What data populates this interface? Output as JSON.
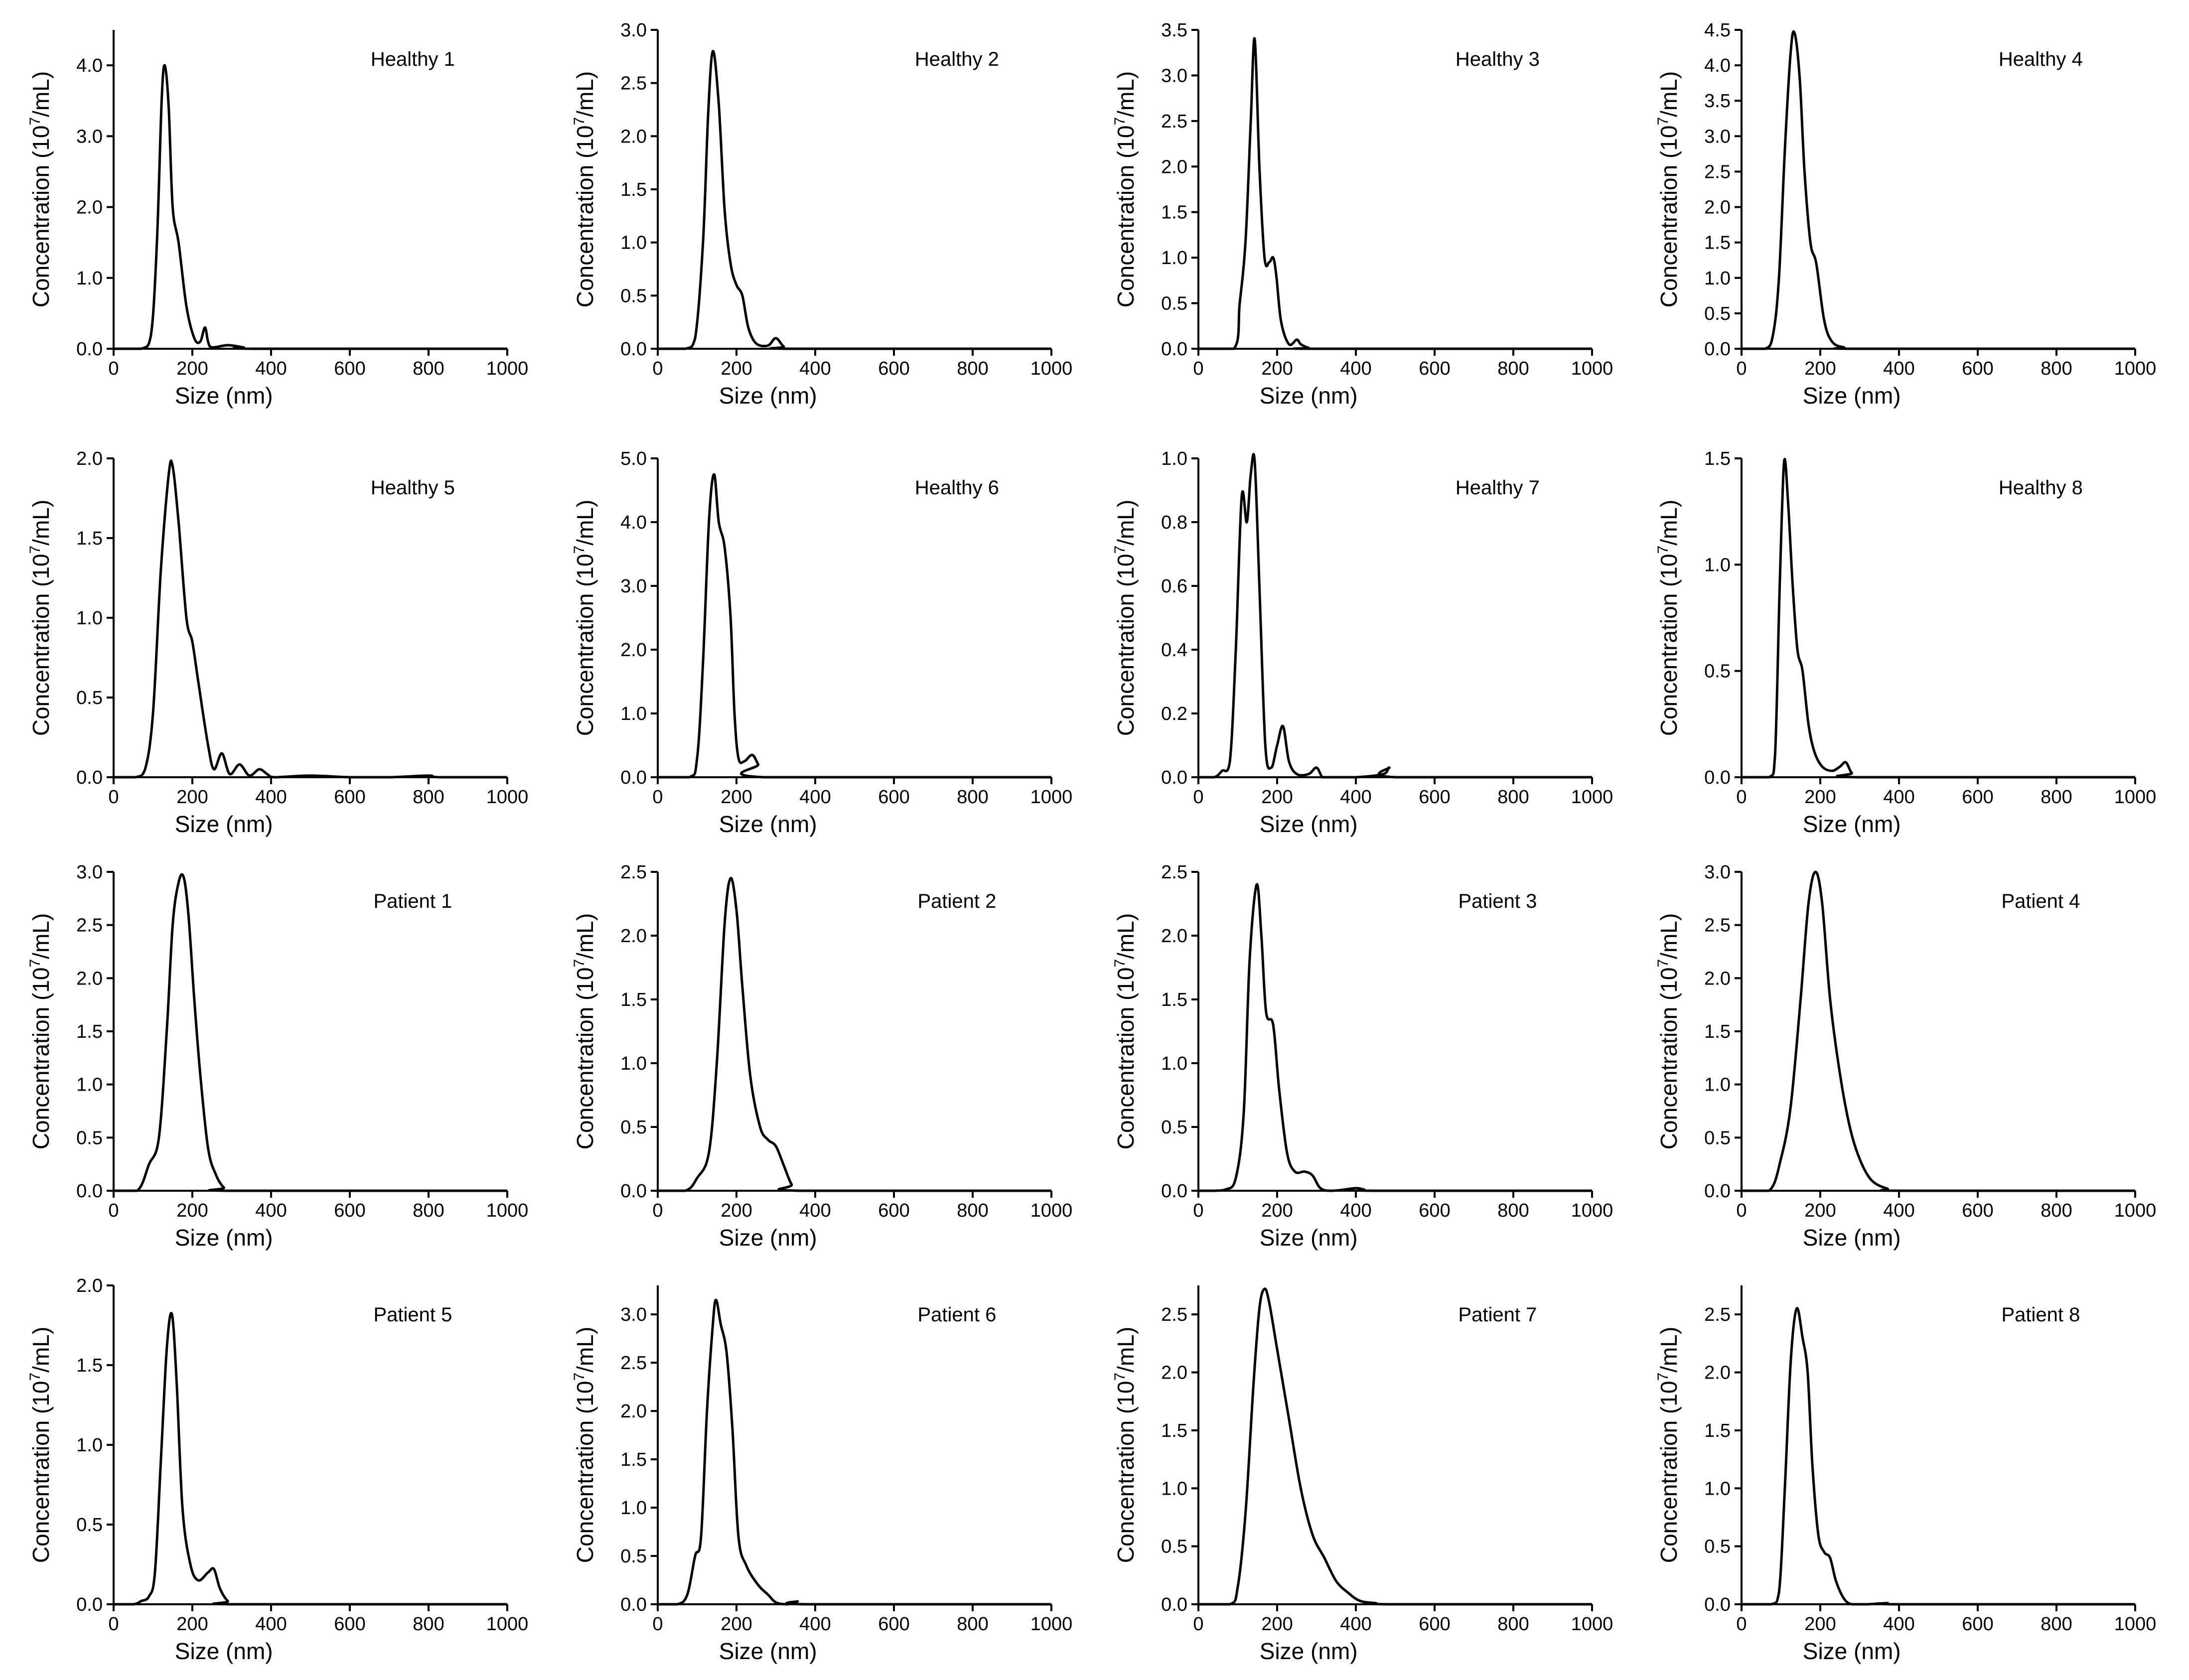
{
  "chart_data": [
    {
      "type": "line",
      "title": "Healthy 1",
      "xlabel": "Size (nm)",
      "ylabel": "Concentration (10^7/mL)",
      "xlim": [
        0,
        1000
      ],
      "ylim": [
        0,
        4.5
      ],
      "xticks": [
        0,
        200,
        400,
        600,
        800,
        1000
      ],
      "yticks": [
        "0.0",
        "1.0",
        "2.0",
        "3.0",
        "4.0"
      ],
      "series": [
        {
          "name": "Healthy 1",
          "x": [
            0,
            70,
            95,
            110,
            122,
            130,
            140,
            150,
            165,
            185,
            205,
            220,
            232,
            240,
            250,
            290,
            330,
            360,
            1000
          ],
          "y": [
            0,
            0,
            0.2,
            1.5,
            3.5,
            4.0,
            3.4,
            2.0,
            1.5,
            0.6,
            0.15,
            0.1,
            0.3,
            0.1,
            0.02,
            0.05,
            0.02,
            0,
            0
          ]
        }
      ]
    },
    {
      "type": "line",
      "title": "Healthy 2",
      "xlabel": "Size (nm)",
      "ylabel": "Concentration (10^7/mL)",
      "xlim": [
        0,
        1000
      ],
      "ylim": [
        0,
        3.0
      ],
      "xticks": [
        0,
        200,
        400,
        600,
        800,
        1000
      ],
      "yticks": [
        "0.0",
        "0.5",
        "1.0",
        "1.5",
        "2.0",
        "2.5",
        "3.0"
      ],
      "series": [
        {
          "name": "Healthy 2",
          "x": [
            0,
            70,
            95,
            115,
            128,
            140,
            155,
            170,
            185,
            200,
            215,
            230,
            250,
            280,
            300,
            320,
            340,
            1000
          ],
          "y": [
            0,
            0,
            0.1,
            1.0,
            2.2,
            2.8,
            2.3,
            1.3,
            0.8,
            0.6,
            0.5,
            0.2,
            0.05,
            0.03,
            0.1,
            0.02,
            0,
            0
          ]
        }
      ]
    },
    {
      "type": "line",
      "title": "Healthy 3",
      "xlabel": "Size (nm)",
      "ylabel": "Concentration (10^7/mL)",
      "xlim": [
        0,
        1000
      ],
      "ylim": [
        0,
        3.5
      ],
      "xticks": [
        0,
        200,
        400,
        600,
        800,
        1000
      ],
      "yticks": [
        "0.0",
        "0.5",
        "1.0",
        "1.5",
        "2.0",
        "2.5",
        "3.0",
        "3.5"
      ],
      "series": [
        {
          "name": "Healthy 3",
          "x": [
            0,
            90,
            105,
            120,
            133,
            143,
            155,
            168,
            180,
            190,
            198,
            210,
            230,
            250,
            260,
            280,
            300,
            1000
          ],
          "y": [
            0,
            0,
            0.5,
            1.2,
            2.5,
            3.4,
            2.0,
            1.0,
            0.95,
            1.0,
            0.8,
            0.3,
            0.05,
            0.1,
            0.05,
            0.01,
            0,
            0
          ]
        }
      ]
    },
    {
      "type": "line",
      "title": "Healthy 4",
      "xlabel": "Size (nm)",
      "ylabel": "Concentration (10^7/mL)",
      "xlim": [
        0,
        1000
      ],
      "ylim": [
        0,
        4.5
      ],
      "xticks": [
        0,
        200,
        400,
        600,
        800,
        1000
      ],
      "yticks": [
        "0.0",
        "0.5",
        "1.0",
        "1.5",
        "2.0",
        "2.5",
        "3.0",
        "3.5",
        "4.0",
        "4.5"
      ],
      "series": [
        {
          "name": "Healthy 4",
          "x": [
            0,
            60,
            80,
            95,
            110,
            125,
            135,
            148,
            160,
            175,
            190,
            210,
            230,
            260,
            300,
            1000
          ],
          "y": [
            0,
            0,
            0.2,
            1.0,
            2.8,
            4.2,
            4.45,
            3.8,
            2.5,
            1.5,
            1.2,
            0.4,
            0.1,
            0.02,
            0,
            0
          ]
        }
      ]
    },
    {
      "type": "line",
      "title": "Healthy 5",
      "xlabel": "Size (nm)",
      "ylabel": "Concentration (10^7/mL)",
      "xlim": [
        0,
        1000
      ],
      "ylim": [
        0,
        2.0
      ],
      "xticks": [
        0,
        200,
        400,
        600,
        800,
        1000
      ],
      "yticks": [
        "0.0",
        "0.5",
        "1.0",
        "1.5",
        "2.0"
      ],
      "series": [
        {
          "name": "Healthy 5",
          "x": [
            0,
            55,
            80,
            100,
            120,
            140,
            150,
            165,
            185,
            200,
            215,
            240,
            255,
            275,
            295,
            320,
            345,
            370,
            390,
            410,
            500,
            600,
            700,
            800,
            830,
            1000
          ],
          "y": [
            0,
            0,
            0.05,
            0.4,
            1.3,
            1.9,
            1.95,
            1.6,
            1.0,
            0.85,
            0.6,
            0.2,
            0.05,
            0.15,
            0.02,
            0.08,
            0.01,
            0.05,
            0.02,
            0,
            0.01,
            0,
            0,
            0.01,
            0,
            0
          ]
        }
      ]
    },
    {
      "type": "line",
      "title": "Healthy 6",
      "xlabel": "Size (nm)",
      "ylabel": "Concentration (10^7/mL)",
      "xlim": [
        0,
        1000
      ],
      "ylim": [
        0,
        5.0
      ],
      "xticks": [
        0,
        200,
        400,
        600,
        800,
        1000
      ],
      "yticks": [
        "0.0",
        "1.0",
        "2.0",
        "3.0",
        "4.0",
        "5.0"
      ],
      "series": [
        {
          "name": "Healthy 6",
          "x": [
            0,
            80,
            100,
            115,
            130,
            143,
            155,
            170,
            185,
            195,
            205,
            220,
            240,
            255,
            270,
            1000
          ],
          "y": [
            0,
            0,
            0.3,
            1.8,
            4.0,
            4.75,
            4.0,
            3.6,
            2.5,
            1.0,
            0.3,
            0.25,
            0.35,
            0.2,
            0,
            0
          ]
        }
      ]
    },
    {
      "type": "line",
      "title": "Healthy 7",
      "xlabel": "Size (nm)",
      "ylabel": "Concentration (10^7/mL)",
      "xlim": [
        0,
        1000
      ],
      "ylim": [
        0,
        1.0
      ],
      "xticks": [
        0,
        200,
        400,
        600,
        800,
        1000
      ],
      "yticks": [
        "0.0",
        "0.2",
        "0.4",
        "0.6",
        "0.8",
        "1.0"
      ],
      "series": [
        {
          "name": "Healthy 7",
          "x": [
            0,
            40,
            60,
            80,
            95,
            110,
            123,
            133,
            143,
            155,
            170,
            185,
            200,
            215,
            230,
            250,
            280,
            300,
            315,
            330,
            400,
            470,
            485,
            500,
            1000
          ],
          "y": [
            0,
            0,
            0.02,
            0.05,
            0.4,
            0.88,
            0.8,
            0.95,
            0.99,
            0.6,
            0.1,
            0.03,
            0.1,
            0.16,
            0.05,
            0.01,
            0.01,
            0.03,
            0,
            0,
            0,
            0.01,
            0.03,
            0,
            0
          ]
        }
      ]
    },
    {
      "type": "line",
      "title": "Healthy 8",
      "xlabel": "Size (nm)",
      "ylabel": "Concentration (10^7/mL)",
      "xlim": [
        0,
        1000
      ],
      "ylim": [
        0,
        1.5
      ],
      "xticks": [
        0,
        200,
        400,
        600,
        800,
        1000
      ],
      "yticks": [
        "0.0",
        "0.5",
        "1.0",
        "1.5"
      ],
      "series": [
        {
          "name": "Healthy 8",
          "x": [
            0,
            70,
            85,
            97,
            108,
            118,
            130,
            142,
            155,
            170,
            185,
            205,
            230,
            250,
            265,
            280,
            300,
            1000
          ],
          "y": [
            0,
            0,
            0.1,
            0.9,
            1.48,
            1.3,
            0.9,
            0.6,
            0.5,
            0.25,
            0.12,
            0.05,
            0.03,
            0.05,
            0.07,
            0.02,
            0,
            0
          ]
        }
      ]
    },
    {
      "type": "line",
      "title": "Patient 1",
      "xlabel": "Size (nm)",
      "ylabel": "Concentration (10^7/mL)",
      "xlim": [
        0,
        1000
      ],
      "ylim": [
        0,
        3.0
      ],
      "xticks": [
        0,
        200,
        400,
        600,
        800,
        1000
      ],
      "yticks": [
        "0.0",
        "0.5",
        "1.0",
        "1.5",
        "2.0",
        "2.5",
        "3.0"
      ],
      "series": [
        {
          "name": "Patient 1",
          "x": [
            0,
            60,
            90,
            115,
            135,
            150,
            165,
            178,
            190,
            205,
            220,
            240,
            260,
            280,
            300,
            1000
          ],
          "y": [
            0,
            0,
            0.25,
            0.5,
            1.5,
            2.5,
            2.9,
            2.95,
            2.6,
            1.8,
            1.1,
            0.4,
            0.15,
            0.03,
            0,
            0
          ]
        }
      ]
    },
    {
      "type": "line",
      "title": "Patient 2",
      "xlabel": "Size (nm)",
      "ylabel": "Concentration (10^7/mL)",
      "xlim": [
        0,
        1000
      ],
      "ylim": [
        0,
        2.5
      ],
      "xticks": [
        0,
        200,
        400,
        600,
        800,
        1000
      ],
      "yticks": [
        "0.0",
        "0.5",
        "1.0",
        "1.5",
        "2.0",
        "2.5"
      ],
      "series": [
        {
          "name": "Patient 2",
          "x": [
            0,
            70,
            100,
            130,
            150,
            170,
            185,
            200,
            215,
            235,
            260,
            280,
            300,
            320,
            340,
            360,
            1000
          ],
          "y": [
            0,
            0,
            0.1,
            0.3,
            1.0,
            2.1,
            2.45,
            2.2,
            1.6,
            0.9,
            0.5,
            0.4,
            0.35,
            0.2,
            0.05,
            0,
            0
          ]
        }
      ]
    },
    {
      "type": "line",
      "title": "Patient 3",
      "xlabel": "Size (nm)",
      "ylabel": "Concentration (10^7/mL)",
      "xlim": [
        0,
        1000
      ],
      "ylim": [
        0,
        2.5
      ],
      "xticks": [
        0,
        200,
        400,
        600,
        800,
        1000
      ],
      "yticks": [
        "0.0",
        "0.5",
        "1.0",
        "1.5",
        "2.0",
        "2.5"
      ],
      "series": [
        {
          "name": "Patient 3",
          "x": [
            0,
            40,
            70,
            95,
            115,
            130,
            148,
            160,
            172,
            190,
            205,
            225,
            245,
            270,
            290,
            310,
            340,
            400,
            420,
            460,
            1000
          ],
          "y": [
            0,
            0,
            0.01,
            0.1,
            0.6,
            1.8,
            2.4,
            2.0,
            1.4,
            1.3,
            0.8,
            0.3,
            0.15,
            0.15,
            0.12,
            0.02,
            0,
            0.02,
            0.01,
            0,
            0
          ]
        }
      ]
    },
    {
      "type": "line",
      "title": "Patient 4",
      "xlabel": "Size (nm)",
      "ylabel": "Concentration (10^7/mL)",
      "xlim": [
        0,
        1000
      ],
      "ylim": [
        0,
        3.0
      ],
      "xticks": [
        0,
        200,
        400,
        600,
        800,
        1000
      ],
      "yticks": [
        "0.0",
        "0.5",
        "1.0",
        "1.5",
        "2.0",
        "2.5",
        "3.0"
      ],
      "series": [
        {
          "name": "Patient 4",
          "x": [
            0,
            70,
            100,
            125,
            150,
            170,
            188,
            205,
            225,
            250,
            275,
            300,
            330,
            370,
            410,
            1000
          ],
          "y": [
            0,
            0,
            0.3,
            0.8,
            1.8,
            2.7,
            3.0,
            2.7,
            1.8,
            1.1,
            0.6,
            0.3,
            0.1,
            0.02,
            0,
            0
          ]
        }
      ]
    },
    {
      "type": "line",
      "title": "Patient 5",
      "xlabel": "Size (nm)",
      "ylabel": "Concentration (10^7/mL)",
      "xlim": [
        0,
        1000
      ],
      "ylim": [
        0,
        2.0
      ],
      "xticks": [
        0,
        200,
        400,
        600,
        800,
        1000
      ],
      "yticks": [
        "0.0",
        "0.5",
        "1.0",
        "1.5",
        "2.0"
      ],
      "series": [
        {
          "name": "Patient 5",
          "x": [
            0,
            50,
            70,
            90,
            105,
            120,
            135,
            148,
            160,
            175,
            195,
            215,
            240,
            255,
            270,
            290,
            310,
            1000
          ],
          "y": [
            0,
            0,
            0.02,
            0.05,
            0.2,
            0.9,
            1.6,
            1.82,
            1.4,
            0.6,
            0.25,
            0.15,
            0.2,
            0.22,
            0.1,
            0.02,
            0,
            0
          ]
        }
      ]
    },
    {
      "type": "line",
      "title": "Patient 6",
      "xlabel": "Size (nm)",
      "ylabel": "Concentration (10^7/mL)",
      "xlim": [
        0,
        1000
      ],
      "ylim": [
        0,
        3.3
      ],
      "xticks": [
        0,
        200,
        400,
        600,
        800,
        1000
      ],
      "yticks": [
        "0.0",
        "0.5",
        "1.0",
        "1.5",
        "2.0",
        "2.5",
        "3.0"
      ],
      "series": [
        {
          "name": "Patient 6",
          "x": [
            0,
            50,
            75,
            95,
            110,
            125,
            140,
            148,
            160,
            175,
            190,
            205,
            225,
            255,
            280,
            300,
            330,
            355,
            380,
            1000
          ],
          "y": [
            0,
            0,
            0.1,
            0.5,
            0.7,
            2.0,
            2.9,
            3.15,
            2.9,
            2.6,
            1.8,
            0.7,
            0.4,
            0.2,
            0.1,
            0.02,
            0,
            0.03,
            0,
            0
          ]
        }
      ]
    },
    {
      "type": "line",
      "title": "Patient 7",
      "xlabel": "Size (nm)",
      "ylabel": "Concentration (10^7/mL)",
      "xlim": [
        0,
        1000
      ],
      "ylim": [
        0,
        2.75
      ],
      "xticks": [
        0,
        200,
        400,
        600,
        800,
        1000
      ],
      "yticks": [
        "0.0",
        "0.5",
        "1.0",
        "1.5",
        "2.0",
        "2.5"
      ],
      "series": [
        {
          "name": "Patient 7",
          "x": [
            0,
            80,
            100,
            120,
            140,
            155,
            168,
            180,
            200,
            230,
            260,
            290,
            320,
            350,
            380,
            410,
            450,
            500,
            1000
          ],
          "y": [
            0,
            0,
            0.15,
            0.8,
            1.9,
            2.55,
            2.72,
            2.6,
            2.2,
            1.6,
            1.0,
            0.6,
            0.4,
            0.2,
            0.1,
            0.03,
            0.01,
            0,
            0
          ]
        }
      ]
    },
    {
      "type": "line",
      "title": "Patient 8",
      "xlabel": "Size (nm)",
      "ylabel": "Concentration (10^7/mL)",
      "xlim": [
        0,
        1000
      ],
      "ylim": [
        0,
        2.75
      ],
      "xticks": [
        0,
        200,
        400,
        600,
        800,
        1000
      ],
      "yticks": [
        "0.0",
        "0.5",
        "1.0",
        "1.5",
        "2.0",
        "2.5"
      ],
      "series": [
        {
          "name": "Patient 8",
          "x": [
            0,
            75,
            95,
            110,
            125,
            140,
            155,
            168,
            180,
            195,
            210,
            225,
            240,
            260,
            280,
            320,
            370,
            400,
            1000
          ],
          "y": [
            0,
            0,
            0.1,
            1.0,
            2.1,
            2.55,
            2.3,
            2.0,
            1.2,
            0.6,
            0.45,
            0.4,
            0.2,
            0.05,
            0,
            0,
            0.01,
            0,
            0
          ]
        }
      ]
    }
  ]
}
